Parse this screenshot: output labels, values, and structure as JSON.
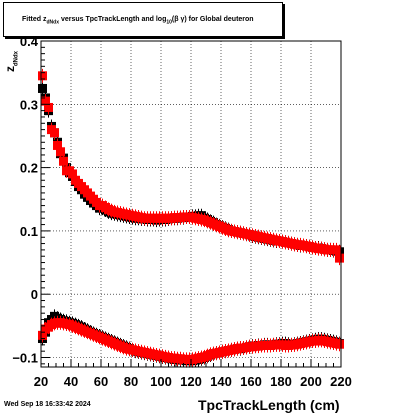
{
  "chart_data": {
    "type": "scatter",
    "title": {
      "prefix": "Fitted  z",
      "sub1": "dNdx",
      "middle": "  versus TpcTrackLength and log",
      "sub2": "10",
      "suffix": "(β γ) for Global deuteron"
    },
    "xlabel": "TpcTrackLength (cm)",
    "ylabel": {
      "main": "z",
      "sub": "dNdx"
    },
    "xlim": [
      20,
      220
    ],
    "ylim": [
      -0.115,
      0.4
    ],
    "xticks": [
      20,
      40,
      60,
      80,
      100,
      120,
      140,
      160,
      180,
      200,
      220
    ],
    "yticks": [
      -0.1,
      0,
      0.1,
      0.2,
      0.3,
      0.4
    ],
    "ytick_labels": [
      "−0.1",
      "0",
      "0.1",
      "0.2",
      "0.3",
      "0.4"
    ],
    "grid": true,
    "series": [
      {
        "color": "#000000",
        "marker": "square",
        "x": [
          21,
          23,
          25,
          27,
          29,
          31,
          33,
          35,
          37,
          39,
          41,
          43,
          45,
          47,
          49,
          51,
          53,
          55,
          57,
          59,
          61,
          63,
          65,
          67,
          69,
          71,
          73,
          75,
          77,
          79,
          81,
          83,
          85,
          87,
          89,
          91,
          93,
          95,
          97,
          99,
          101,
          103,
          105,
          107,
          109,
          111,
          113,
          115,
          117,
          119,
          121,
          123,
          125,
          127,
          129,
          131,
          133,
          135,
          137,
          139,
          141,
          143,
          145,
          147,
          149,
          151,
          153,
          155,
          157,
          159,
          161,
          163,
          165,
          167,
          169,
          171,
          173,
          175,
          177,
          179,
          181,
          183,
          185,
          187,
          189,
          191,
          193,
          195,
          197,
          199,
          201,
          203,
          205,
          207,
          209,
          211,
          213,
          215,
          217,
          219
        ],
        "y": [
          0.325,
          0.31,
          0.29,
          0.265,
          0.255,
          0.24,
          0.222,
          0.215,
          0.2,
          0.192,
          0.186,
          0.178,
          0.17,
          0.165,
          0.158,
          0.153,
          0.148,
          0.144,
          0.14,
          0.136,
          0.136,
          0.133,
          0.13,
          0.128,
          0.127,
          0.126,
          0.125,
          0.124,
          0.123,
          0.122,
          0.121,
          0.12,
          0.12,
          0.119,
          0.119,
          0.118,
          0.118,
          0.118,
          0.117,
          0.118,
          0.118,
          0.118,
          0.119,
          0.12,
          0.12,
          0.12,
          0.121,
          0.121,
          0.122,
          0.122,
          0.123,
          0.123,
          0.124,
          0.124,
          0.12,
          0.118,
          0.115,
          0.113,
          0.11,
          0.108,
          0.106,
          0.104,
          0.102,
          0.1,
          0.099,
          0.098,
          0.097,
          0.096,
          0.095,
          0.094,
          0.092,
          0.091,
          0.09,
          0.089,
          0.088,
          0.087,
          0.086,
          0.085,
          0.084,
          0.084,
          0.083,
          0.082,
          0.081,
          0.08,
          0.079,
          0.078,
          0.077,
          0.077,
          0.076,
          0.075,
          0.074,
          0.073,
          0.073,
          0.072,
          0.071,
          0.07,
          0.07,
          0.069,
          0.068,
          0.067
        ]
      },
      {
        "color": "#ff0000",
        "marker": "square",
        "x": [
          21,
          23,
          25,
          27,
          29,
          31,
          33,
          35,
          37,
          39,
          41,
          43,
          45,
          47,
          49,
          51,
          53,
          55,
          57,
          59,
          61,
          63,
          65,
          67,
          69,
          71,
          73,
          75,
          77,
          79,
          81,
          83,
          85,
          87,
          89,
          91,
          93,
          95,
          97,
          99,
          101,
          103,
          105,
          107,
          109,
          111,
          113,
          115,
          117,
          119,
          121,
          123,
          125,
          127,
          129,
          131,
          133,
          135,
          137,
          139,
          141,
          143,
          145,
          147,
          149,
          151,
          153,
          155,
          157,
          159,
          161,
          163,
          165,
          167,
          169,
          171,
          173,
          175,
          177,
          179,
          181,
          183,
          185,
          187,
          189,
          191,
          193,
          195,
          197,
          199,
          201,
          203,
          205,
          207,
          209,
          211,
          213,
          215,
          217,
          219
        ],
        "y": [
          0.345,
          0.305,
          0.295,
          0.26,
          0.255,
          0.235,
          0.225,
          0.21,
          0.195,
          0.195,
          0.19,
          0.18,
          0.175,
          0.17,
          0.165,
          0.16,
          0.155,
          0.15,
          0.145,
          0.14,
          0.14,
          0.137,
          0.134,
          0.132,
          0.13,
          0.129,
          0.128,
          0.127,
          0.126,
          0.125,
          0.124,
          0.123,
          0.122,
          0.121,
          0.12,
          0.12,
          0.12,
          0.12,
          0.12,
          0.12,
          0.12,
          0.12,
          0.12,
          0.12,
          0.121,
          0.121,
          0.121,
          0.122,
          0.122,
          0.122,
          0.121,
          0.12,
          0.119,
          0.118,
          0.117,
          0.115,
          0.113,
          0.111,
          0.109,
          0.107,
          0.105,
          0.103,
          0.101,
          0.1,
          0.099,
          0.098,
          0.097,
          0.096,
          0.095,
          0.094,
          0.093,
          0.092,
          0.091,
          0.09,
          0.089,
          0.088,
          0.087,
          0.086,
          0.085,
          0.084,
          0.083,
          0.082,
          0.081,
          0.08,
          0.079,
          0.078,
          0.078,
          0.077,
          0.076,
          0.075,
          0.074,
          0.073,
          0.072,
          0.072,
          0.071,
          0.07,
          0.07,
          0.07,
          0.07,
          0.057
        ]
      },
      {
        "color": "#000000",
        "marker": "square",
        "x": [
          21,
          23,
          25,
          27,
          29,
          31,
          33,
          35,
          37,
          39,
          41,
          43,
          45,
          47,
          49,
          51,
          53,
          55,
          57,
          59,
          61,
          63,
          65,
          67,
          69,
          71,
          73,
          75,
          77,
          79,
          81,
          83,
          85,
          87,
          89,
          91,
          93,
          95,
          97,
          99,
          101,
          103,
          105,
          107,
          109,
          111,
          113,
          115,
          117,
          119,
          121,
          123,
          125,
          127,
          129,
          131,
          133,
          135,
          137,
          139,
          141,
          143,
          145,
          147,
          149,
          151,
          153,
          155,
          157,
          159,
          161,
          163,
          165,
          167,
          169,
          171,
          173,
          175,
          177,
          179,
          181,
          183,
          185,
          187,
          189,
          191,
          193,
          195,
          197,
          199,
          201,
          203,
          205,
          207,
          209,
          211,
          213,
          215,
          217,
          219
        ],
        "y": [
          -0.07,
          -0.06,
          -0.045,
          -0.04,
          -0.035,
          -0.038,
          -0.04,
          -0.042,
          -0.043,
          -0.045,
          -0.046,
          -0.048,
          -0.05,
          -0.052,
          -0.055,
          -0.057,
          -0.06,
          -0.062,
          -0.064,
          -0.066,
          -0.068,
          -0.07,
          -0.072,
          -0.074,
          -0.076,
          -0.078,
          -0.08,
          -0.082,
          -0.084,
          -0.086,
          -0.088,
          -0.09,
          -0.091,
          -0.092,
          -0.093,
          -0.094,
          -0.095,
          -0.096,
          -0.097,
          -0.098,
          -0.099,
          -0.1,
          -0.101,
          -0.102,
          -0.103,
          -0.103,
          -0.104,
          -0.104,
          -0.105,
          -0.105,
          -0.105,
          -0.104,
          -0.103,
          -0.102,
          -0.1,
          -0.098,
          -0.096,
          -0.094,
          -0.093,
          -0.092,
          -0.091,
          -0.09,
          -0.089,
          -0.088,
          -0.087,
          -0.086,
          -0.086,
          -0.085,
          -0.084,
          -0.083,
          -0.082,
          -0.082,
          -0.081,
          -0.081,
          -0.08,
          -0.08,
          -0.081,
          -0.08,
          -0.079,
          -0.079,
          -0.078,
          -0.078,
          -0.079,
          -0.08,
          -0.079,
          -0.078,
          -0.077,
          -0.076,
          -0.075,
          -0.074,
          -0.073,
          -0.072,
          -0.071,
          -0.071,
          -0.072,
          -0.073,
          -0.074,
          -0.075,
          -0.076,
          -0.078
        ]
      },
      {
        "color": "#ff0000",
        "marker": "square",
        "x": [
          21,
          23,
          25,
          27,
          29,
          31,
          33,
          35,
          37,
          39,
          41,
          43,
          45,
          47,
          49,
          51,
          53,
          55,
          57,
          59,
          61,
          63,
          65,
          67,
          69,
          71,
          73,
          75,
          77,
          79,
          81,
          83,
          85,
          87,
          89,
          91,
          93,
          95,
          97,
          99,
          101,
          103,
          105,
          107,
          109,
          111,
          113,
          115,
          117,
          119,
          121,
          123,
          125,
          127,
          129,
          131,
          133,
          135,
          137,
          139,
          141,
          143,
          145,
          147,
          149,
          151,
          153,
          155,
          157,
          159,
          161,
          163,
          165,
          167,
          169,
          171,
          173,
          175,
          177,
          179,
          181,
          183,
          185,
          187,
          189,
          191,
          193,
          195,
          197,
          199,
          201,
          203,
          205,
          207,
          209,
          211,
          213,
          215,
          217,
          219
        ],
        "y": [
          -0.065,
          -0.055,
          -0.052,
          -0.048,
          -0.046,
          -0.045,
          -0.045,
          -0.046,
          -0.047,
          -0.048,
          -0.05,
          -0.052,
          -0.054,
          -0.056,
          -0.058,
          -0.06,
          -0.062,
          -0.064,
          -0.066,
          -0.068,
          -0.07,
          -0.072,
          -0.074,
          -0.076,
          -0.078,
          -0.08,
          -0.082,
          -0.084,
          -0.086,
          -0.087,
          -0.088,
          -0.089,
          -0.09,
          -0.091,
          -0.092,
          -0.093,
          -0.094,
          -0.095,
          -0.096,
          -0.097,
          -0.098,
          -0.099,
          -0.1,
          -0.101,
          -0.101,
          -0.102,
          -0.102,
          -0.103,
          -0.103,
          -0.103,
          -0.103,
          -0.102,
          -0.101,
          -0.1,
          -0.099,
          -0.097,
          -0.095,
          -0.094,
          -0.093,
          -0.092,
          -0.091,
          -0.09,
          -0.089,
          -0.088,
          -0.087,
          -0.086,
          -0.085,
          -0.085,
          -0.084,
          -0.083,
          -0.083,
          -0.082,
          -0.082,
          -0.081,
          -0.081,
          -0.081,
          -0.081,
          -0.08,
          -0.08,
          -0.08,
          -0.08,
          -0.081,
          -0.081,
          -0.08,
          -0.08,
          -0.079,
          -0.078,
          -0.077,
          -0.076,
          -0.075,
          -0.074,
          -0.074,
          -0.073,
          -0.073,
          -0.074,
          -0.075,
          -0.076,
          -0.077,
          -0.078,
          -0.079
        ]
      }
    ]
  },
  "footer": {
    "timestamp": "Wed Sep 18 16:33:42 2024"
  }
}
